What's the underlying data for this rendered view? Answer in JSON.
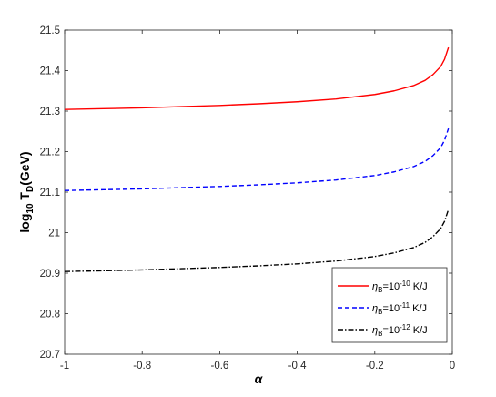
{
  "chart_data": {
    "type": "line",
    "title": "",
    "xlabel": "α",
    "ylabel": {
      "base": "log",
      "base_sub": "10",
      "main": " T",
      "main_sub": "D",
      "tail": "(GeV)"
    },
    "xlim": [
      -1,
      0
    ],
    "ylim": [
      20.7,
      21.5
    ],
    "xticks": [
      -1,
      -0.8,
      -0.6,
      -0.4,
      -0.2,
      0
    ],
    "xtick_labels": [
      "-1",
      "-0.8",
      "-0.6",
      "-0.4",
      "-0.2",
      "0"
    ],
    "yticks": [
      20.7,
      20.8,
      20.9,
      21,
      21.1,
      21.2,
      21.3,
      21.4,
      21.5
    ],
    "ytick_labels": [
      "20.7",
      "20.8",
      "20.9",
      "21",
      "21.1",
      "21.2",
      "21.3",
      "21.4",
      "21.5"
    ],
    "grid": false,
    "legend_position": "bottom-right",
    "x": [
      -1,
      -0.9,
      -0.8,
      -0.7,
      -0.6,
      -0.5,
      -0.4,
      -0.3,
      -0.2,
      -0.15,
      -0.1,
      -0.07,
      -0.05,
      -0.03,
      -0.02,
      -0.01
    ],
    "series": [
      {
        "legend": {
          "sym": "η",
          "sub": "B",
          "eq": "=10",
          "sup": "-10",
          "unit": " K/J"
        },
        "color": "#ff0000",
        "dash": "solid",
        "values": [
          21.304,
          21.306,
          21.308,
          21.311,
          21.314,
          21.318,
          21.323,
          21.33,
          21.341,
          21.35,
          21.363,
          21.376,
          21.39,
          21.41,
          21.428,
          21.457
        ]
      },
      {
        "legend": {
          "sym": "η",
          "sub": "B",
          "eq": "=10",
          "sup": "-11",
          "unit": " K/J"
        },
        "color": "#0000ff",
        "dash": "dashed",
        "values": [
          21.104,
          21.106,
          21.108,
          21.111,
          21.114,
          21.118,
          21.123,
          21.13,
          21.141,
          21.15,
          21.163,
          21.176,
          21.19,
          21.21,
          21.228,
          21.257
        ]
      },
      {
        "legend": {
          "sym": "η",
          "sub": "B",
          "eq": "=10",
          "sup": "-12",
          "unit": " K/J"
        },
        "color": "#000000",
        "dash": "dashdot",
        "values": [
          20.904,
          20.906,
          20.908,
          20.911,
          20.914,
          20.918,
          20.923,
          20.93,
          20.941,
          20.95,
          20.963,
          20.976,
          20.99,
          21.01,
          21.028,
          21.057
        ]
      }
    ]
  }
}
